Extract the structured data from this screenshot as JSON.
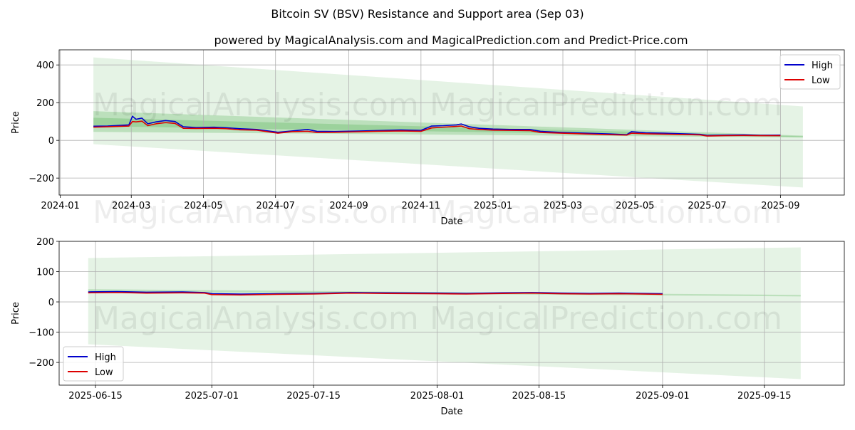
{
  "figure": {
    "title": "Bitcoin SV (BSV) Resistance and Support area (Sep 03)",
    "subtitle": "powered by MagicalAnalysis.com and MagicalPrediction.com and Predict-Price.com",
    "watermarks": [
      "MagicalAnalysis.com",
      "MagicalPrediction.com"
    ]
  },
  "colors": {
    "high": "#0000cc",
    "low": "#dd0000",
    "band_outer": "#2ca02c",
    "band_inner": "#2ca02c",
    "grid": "#b0b0b0"
  },
  "chart_data": [
    {
      "type": "line",
      "panel": "overview",
      "xlabel": "Date",
      "ylabel": "Price",
      "grid": true,
      "legend": "upper right",
      "x_ticks": [
        "2024-01",
        "2024-03",
        "2024-05",
        "2024-07",
        "2024-09",
        "2024-11",
        "2025-01",
        "2025-03",
        "2025-05",
        "2025-07",
        "2025-09"
      ],
      "y_ticks": [
        "−200",
        "0",
        "200",
        "400"
      ],
      "xlim": [
        "2023-12-31",
        "2025-10-25"
      ],
      "ylim": [
        -290,
        480
      ],
      "series": [
        {
          "name": "High",
          "x": [
            "2024-01-29",
            "2024-02-10",
            "2024-02-28",
            "2024-03-02",
            "2024-03-05",
            "2024-03-10",
            "2024-03-15",
            "2024-03-22",
            "2024-03-30",
            "2024-04-07",
            "2024-04-14",
            "2024-04-25",
            "2024-05-10",
            "2024-05-20",
            "2024-06-01",
            "2024-06-15",
            "2024-07-01",
            "2024-07-03",
            "2024-07-15",
            "2024-07-28",
            "2024-08-05",
            "2024-08-20",
            "2024-09-05",
            "2024-09-25",
            "2024-10-15",
            "2024-11-01",
            "2024-11-10",
            "2024-11-20",
            "2024-12-01",
            "2024-12-05",
            "2024-12-12",
            "2024-12-20",
            "2025-01-01",
            "2025-01-15",
            "2025-02-01",
            "2025-02-10",
            "2025-02-28",
            "2025-03-20",
            "2025-04-10",
            "2025-04-24",
            "2025-04-28",
            "2025-05-10",
            "2025-05-25",
            "2025-06-10",
            "2025-06-25",
            "2025-07-01",
            "2025-07-15",
            "2025-08-01",
            "2025-08-15",
            "2025-09-01"
          ],
          "values": [
            75,
            76,
            82,
            128,
            112,
            118,
            88,
            98,
            105,
            100,
            72,
            68,
            70,
            67,
            62,
            58,
            45,
            43,
            50,
            58,
            48,
            47,
            49,
            52,
            55,
            53,
            76,
            78,
            82,
            87,
            72,
            64,
            60,
            58,
            58,
            48,
            42,
            38,
            34,
            30,
            46,
            40,
            38,
            35,
            32,
            26,
            28,
            29,
            27,
            28
          ]
        },
        {
          "name": "Low",
          "x": [
            "2024-01-29",
            "2024-02-10",
            "2024-02-28",
            "2024-03-02",
            "2024-03-05",
            "2024-03-10",
            "2024-03-15",
            "2024-03-22",
            "2024-03-30",
            "2024-04-07",
            "2024-04-14",
            "2024-04-25",
            "2024-05-10",
            "2024-05-20",
            "2024-06-01",
            "2024-06-15",
            "2024-07-01",
            "2024-07-03",
            "2024-07-15",
            "2024-07-28",
            "2024-08-05",
            "2024-08-20",
            "2024-09-05",
            "2024-09-25",
            "2024-10-15",
            "2024-11-01",
            "2024-11-10",
            "2024-11-20",
            "2024-12-01",
            "2024-12-05",
            "2024-12-12",
            "2024-12-20",
            "2025-01-01",
            "2025-01-15",
            "2025-02-01",
            "2025-02-10",
            "2025-02-28",
            "2025-03-20",
            "2025-04-10",
            "2025-04-24",
            "2025-04-28",
            "2025-05-10",
            "2025-05-25",
            "2025-06-10",
            "2025-06-25",
            "2025-07-01",
            "2025-07-15",
            "2025-08-01",
            "2025-08-15",
            "2025-09-01"
          ],
          "values": [
            70,
            72,
            76,
            100,
            98,
            102,
            78,
            88,
            94,
            90,
            64,
            63,
            64,
            62,
            56,
            54,
            40,
            38,
            46,
            48,
            42,
            43,
            45,
            48,
            50,
            48,
            66,
            70,
            74,
            76,
            62,
            58,
            54,
            53,
            52,
            42,
            38,
            34,
            30,
            28,
            38,
            35,
            33,
            31,
            29,
            23,
            25,
            26,
            25,
            25
          ]
        }
      ],
      "bands": [
        {
          "x": [
            "2024-01-29",
            "2025-09-20"
          ],
          "upper": [
            440,
            180
          ],
          "lower": [
            -20,
            -250
          ]
        },
        {
          "x": [
            "2024-01-29",
            "2025-09-20"
          ],
          "upper": [
            155,
            25
          ],
          "lower": [
            45,
            15
          ]
        },
        {
          "x": [
            "2024-01-29",
            "2025-09-20"
          ],
          "upper": [
            120,
            22
          ],
          "lower": [
            75,
            18
          ]
        }
      ]
    },
    {
      "type": "line",
      "panel": "zoom",
      "xlabel": "Date",
      "ylabel": "Price",
      "grid": true,
      "legend": "lower left",
      "x_ticks": [
        "2025-06-15",
        "2025-07-01",
        "2025-07-15",
        "2025-08-01",
        "2025-08-15",
        "2025-09-01",
        "2025-09-15"
      ],
      "y_ticks": [
        "−200",
        "−100",
        "0",
        "100",
        "200"
      ],
      "xlim": [
        "2025-06-10",
        "2025-09-26"
      ],
      "ylim": [
        -275,
        200
      ],
      "series": [
        {
          "name": "High",
          "x": [
            "2025-06-14",
            "2025-06-18",
            "2025-06-22",
            "2025-06-27",
            "2025-06-30",
            "2025-07-01",
            "2025-07-05",
            "2025-07-10",
            "2025-07-15",
            "2025-07-20",
            "2025-07-25",
            "2025-08-01",
            "2025-08-05",
            "2025-08-10",
            "2025-08-14",
            "2025-08-18",
            "2025-08-22",
            "2025-08-26",
            "2025-09-01"
          ],
          "values": [
            33,
            34,
            32,
            33,
            31,
            27,
            26,
            27,
            28,
            31,
            30,
            29,
            28,
            30,
            31,
            29,
            28,
            29,
            27
          ]
        },
        {
          "name": "Low",
          "x": [
            "2025-06-14",
            "2025-06-18",
            "2025-06-22",
            "2025-06-27",
            "2025-06-30",
            "2025-07-01",
            "2025-07-05",
            "2025-07-10",
            "2025-07-15",
            "2025-07-20",
            "2025-07-25",
            "2025-08-01",
            "2025-08-05",
            "2025-08-10",
            "2025-08-14",
            "2025-08-18",
            "2025-08-22",
            "2025-08-26",
            "2025-09-01"
          ],
          "values": [
            30,
            31,
            29,
            30,
            29,
            24,
            23,
            25,
            26,
            29,
            28,
            27,
            26,
            28,
            29,
            27,
            26,
            27,
            25
          ]
        }
      ],
      "bands": [
        {
          "x": [
            "2025-06-14",
            "2025-09-20"
          ],
          "upper": [
            145,
            180
          ],
          "lower": [
            -140,
            -255
          ]
        },
        {
          "x": [
            "2025-06-14",
            "2025-09-20"
          ],
          "upper": [
            42,
            23
          ],
          "lower": [
            34,
            18
          ]
        }
      ]
    }
  ]
}
